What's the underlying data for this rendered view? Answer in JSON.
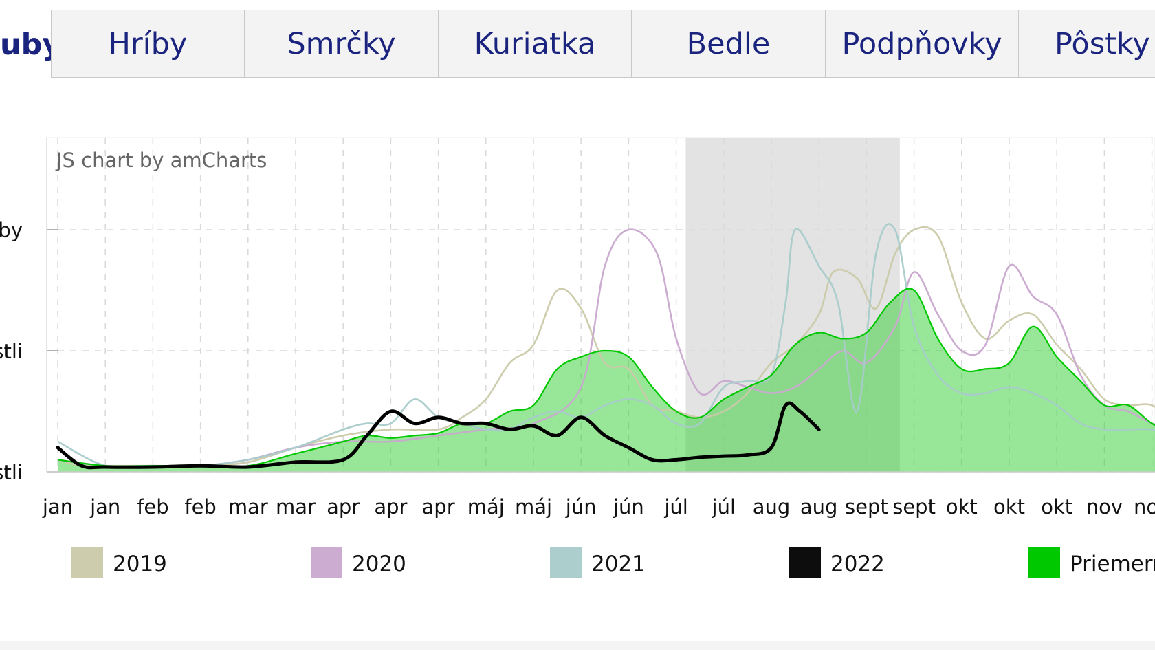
{
  "tabs": [
    {
      "label": "Huby",
      "active": true
    },
    {
      "label": "Hríby"
    },
    {
      "label": "Smrčky"
    },
    {
      "label": "Kuriatka"
    },
    {
      "label": "Bedle"
    },
    {
      "label": "Podpňovky"
    },
    {
      "label": "Pôstky"
    }
  ],
  "chart_data": {
    "type": "area",
    "watermark": "JS chart by amCharts",
    "xlabel": "",
    "ylabel": "",
    "x_ticks": [
      "jan",
      "jan",
      "feb",
      "feb",
      "mar",
      "mar",
      "apr",
      "apr",
      "apr",
      "máj",
      "máj",
      "jún",
      "jún",
      "júl",
      "júl",
      "aug",
      "aug",
      "sept",
      "sept",
      "okt",
      "okt",
      "okt",
      "nov",
      "nov"
    ],
    "y_ticks": [
      {
        "value": 0,
        "label": "Nerastli"
      },
      {
        "value": 1,
        "label": "Rastli"
      },
      {
        "value": 2,
        "label": "Masovo rastúce huby"
      }
    ],
    "ylim": [
      0,
      3
    ],
    "x_range": [
      0,
      24
    ],
    "highlight_range": [
      13.2,
      17.7
    ],
    "grid": true,
    "legend_position": "bottom",
    "series": [
      {
        "name": "2019",
        "color": "#cacaaa",
        "x": [
          0,
          0.5,
          1,
          2,
          3,
          4,
          5,
          6,
          7,
          8,
          8.5,
          9,
          9.5,
          10,
          10.5,
          11,
          11.5,
          12,
          12.5,
          13,
          13.5,
          14,
          14.5,
          15,
          15.5,
          16,
          16.3,
          16.8,
          17.2,
          17.6,
          18,
          18.5,
          19,
          19.5,
          20,
          20.5,
          21,
          21.5,
          22,
          22.5,
          23,
          23.5,
          24
        ],
        "y": [
          0.1,
          0.05,
          0.05,
          0.05,
          0.05,
          0.08,
          0.2,
          0.3,
          0.35,
          0.35,
          0.45,
          0.6,
          0.9,
          1.05,
          1.5,
          1.35,
          0.9,
          0.85,
          0.55,
          0.5,
          0.45,
          0.5,
          0.65,
          0.9,
          1.05,
          1.3,
          1.65,
          1.6,
          1.35,
          1.8,
          2.0,
          1.95,
          1.4,
          1.1,
          1.25,
          1.3,
          1.05,
          0.85,
          0.6,
          0.55,
          0.55,
          0.4,
          0.35
        ]
      },
      {
        "name": "2020",
        "color": "#c9a9cf",
        "x": [
          0,
          1,
          2,
          3,
          4,
          5,
          6,
          7,
          8,
          9,
          10,
          11,
          11.5,
          12,
          12.6,
          13,
          13.5,
          14,
          14.5,
          15,
          15.5,
          16,
          16.5,
          17,
          17.6,
          18,
          18.5,
          19,
          19.5,
          20,
          20.5,
          21,
          21.5,
          22,
          22.5,
          23,
          23.5,
          24
        ],
        "y": [
          0.1,
          0.05,
          0.05,
          0.05,
          0.1,
          0.2,
          0.25,
          0.25,
          0.3,
          0.35,
          0.4,
          0.7,
          1.7,
          2.0,
          1.8,
          1.1,
          0.65,
          0.75,
          0.7,
          0.65,
          0.7,
          0.85,
          1.0,
          0.9,
          1.2,
          1.65,
          1.3,
          1.0,
          1.05,
          1.7,
          1.45,
          1.3,
          0.8,
          0.55,
          0.5,
          0.4,
          0.35,
          0.3
        ]
      },
      {
        "name": "2021",
        "color": "#a8cbca",
        "x": [
          0,
          1,
          2,
          3,
          4,
          5,
          6,
          6.5,
          7,
          7.5,
          8,
          8.5,
          9,
          9.5,
          10,
          10.5,
          11,
          11.5,
          12,
          12.5,
          13,
          13.5,
          14,
          14.5,
          15,
          15.3,
          15.5,
          16,
          16.4,
          16.8,
          17.2,
          17.6,
          18,
          18.5,
          19,
          19.5,
          20,
          20.5,
          21,
          21.5,
          22,
          22.5,
          23,
          23.5,
          24
        ],
        "y": [
          0.25,
          0.05,
          0.05,
          0.05,
          0.1,
          0.2,
          0.35,
          0.4,
          0.4,
          0.6,
          0.45,
          0.4,
          0.35,
          0.35,
          0.45,
          0.5,
          0.45,
          0.55,
          0.6,
          0.55,
          0.4,
          0.4,
          0.7,
          0.75,
          0.8,
          1.4,
          2.0,
          1.7,
          1.4,
          0.5,
          1.8,
          2.0,
          1.2,
          0.8,
          0.65,
          0.65,
          0.7,
          0.65,
          0.55,
          0.4,
          0.35,
          0.35,
          0.35,
          0.3,
          0.25
        ]
      },
      {
        "name": "2022",
        "color": "#000000",
        "x": [
          0,
          0.5,
          1,
          2,
          3,
          4,
          5,
          6,
          6.5,
          7,
          7.5,
          8,
          8.5,
          9,
          9.5,
          10,
          10.5,
          11,
          11.5,
          12,
          12.5,
          13,
          13.5,
          14,
          14.5,
          15,
          15.3,
          15.6,
          16
        ],
        "y": [
          0.2,
          0.05,
          0.04,
          0.04,
          0.05,
          0.04,
          0.08,
          0.1,
          0.3,
          0.5,
          0.4,
          0.45,
          0.4,
          0.4,
          0.35,
          0.38,
          0.3,
          0.45,
          0.3,
          0.2,
          0.1,
          0.1,
          0.12,
          0.13,
          0.14,
          0.2,
          0.55,
          0.5,
          0.35
        ]
      },
      {
        "name": "Priemerné",
        "color": "#00c800",
        "x": [
          0,
          1,
          2,
          3,
          4,
          5,
          6,
          6.5,
          7,
          7.5,
          8,
          8.5,
          9,
          9.5,
          10,
          10.5,
          11,
          11.5,
          12,
          12.5,
          13,
          13.5,
          14,
          14.5,
          15,
          15.5,
          16,
          16.5,
          17,
          17.5,
          18,
          18.5,
          19,
          19.5,
          20,
          20.5,
          21,
          21.5,
          22,
          22.5,
          23,
          23.5,
          24
        ],
        "y": [
          0.1,
          0.05,
          0.05,
          0.05,
          0.05,
          0.15,
          0.25,
          0.3,
          0.28,
          0.3,
          0.32,
          0.4,
          0.4,
          0.5,
          0.55,
          0.85,
          0.95,
          1.0,
          0.95,
          0.7,
          0.5,
          0.45,
          0.6,
          0.7,
          0.8,
          1.05,
          1.15,
          1.1,
          1.15,
          1.4,
          1.5,
          1.1,
          0.85,
          0.85,
          0.9,
          1.2,
          0.95,
          0.75,
          0.55,
          0.55,
          0.4,
          0.3,
          0.25
        ]
      }
    ]
  }
}
